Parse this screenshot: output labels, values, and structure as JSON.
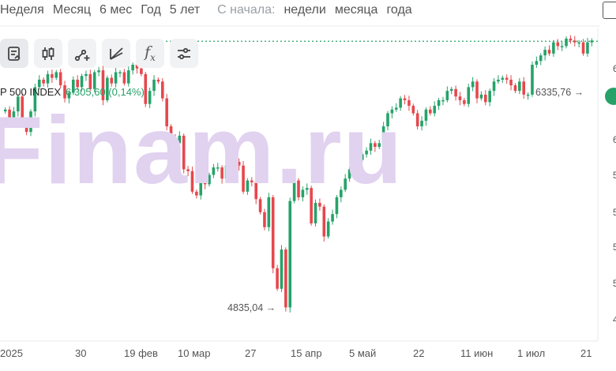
{
  "periods": {
    "items": [
      "Неделя",
      "Месяц",
      "6 мес",
      "Год",
      "5 лет"
    ],
    "since_label": "С начала:",
    "since_items": [
      "недели",
      "месяца",
      "года"
    ]
  },
  "toolbar": {
    "tools": [
      {
        "name": "notes-icon"
      },
      {
        "name": "candlestick-icon"
      },
      {
        "name": "line-tool-icon"
      },
      {
        "name": "fibonacci-icon"
      },
      {
        "name": "function-icon",
        "text": "f",
        "sub": "x"
      },
      {
        "name": "settings-sliders-icon"
      }
    ]
  },
  "ticker": {
    "name": "P 500 INDEX",
    "price": "6 305,60 (0,14%)"
  },
  "watermark": "Finam.ru",
  "annotations": {
    "high": "6335,76 →",
    "low": "4835,04 →"
  },
  "x_axis": [
    "2025",
    "30",
    "19 фев",
    "10 мар",
    "27",
    "15 апр",
    "5 май",
    "22",
    "11 июн",
    "1 июл",
    "21"
  ],
  "y_axis_cut": [
    "6",
    "6",
    "5",
    "5",
    "5",
    "5",
    "4"
  ],
  "colors": {
    "up": "#26a269",
    "down": "#e5484d",
    "price_line": "#26a269"
  },
  "chart_data": {
    "type": "candlestick",
    "title": "",
    "series_name": "P 500 INDEX",
    "ylim": [
      4700,
      6400
    ],
    "closes": [
      5940,
      5870,
      5930,
      6010,
      5860,
      5820,
      5930,
      6060,
      6100,
      6080,
      6130,
      6110,
      6140,
      6070,
      6000,
      6030,
      6100,
      6060,
      6120,
      6130,
      6050,
      6140,
      6150,
      5990,
      6110,
      6080,
      6140,
      6140,
      6080,
      6150,
      6180,
      6160,
      6130,
      5970,
      6040,
      6100,
      6090,
      6000,
      5850,
      5790,
      5760,
      5800,
      5620,
      5610,
      5500,
      5480,
      5560,
      5540,
      5590,
      5630,
      5630,
      5570,
      5640,
      5680,
      5660,
      5640,
      5500,
      5560,
      5550,
      5460,
      5390,
      5310,
      5470,
      5090,
      4980,
      5190,
      4880,
      5450,
      5560,
      5470,
      5510,
      5520,
      5330,
      5440,
      5420,
      5260,
      5340,
      5380,
      5470,
      5510,
      5570,
      5620,
      5680,
      5670,
      5700,
      5720,
      5760,
      5740,
      5760,
      5850,
      5920,
      5940,
      5950,
      6000,
      5990,
      5960,
      5920,
      5850,
      5880,
      5940,
      5920,
      5960,
      5990,
      5990,
      6040,
      6050,
      6010,
      5990,
      5970,
      6060,
      6090,
      6000,
      6020,
      5980,
      6040,
      6090,
      6100,
      6110,
      6100,
      6070,
      6040,
      6090,
      6020,
      6020,
      6180,
      6200,
      6230,
      6260,
      6240,
      6300,
      6280,
      6280,
      6320,
      6310,
      6300,
      6300,
      6240,
      6300,
      6310
    ]
  }
}
